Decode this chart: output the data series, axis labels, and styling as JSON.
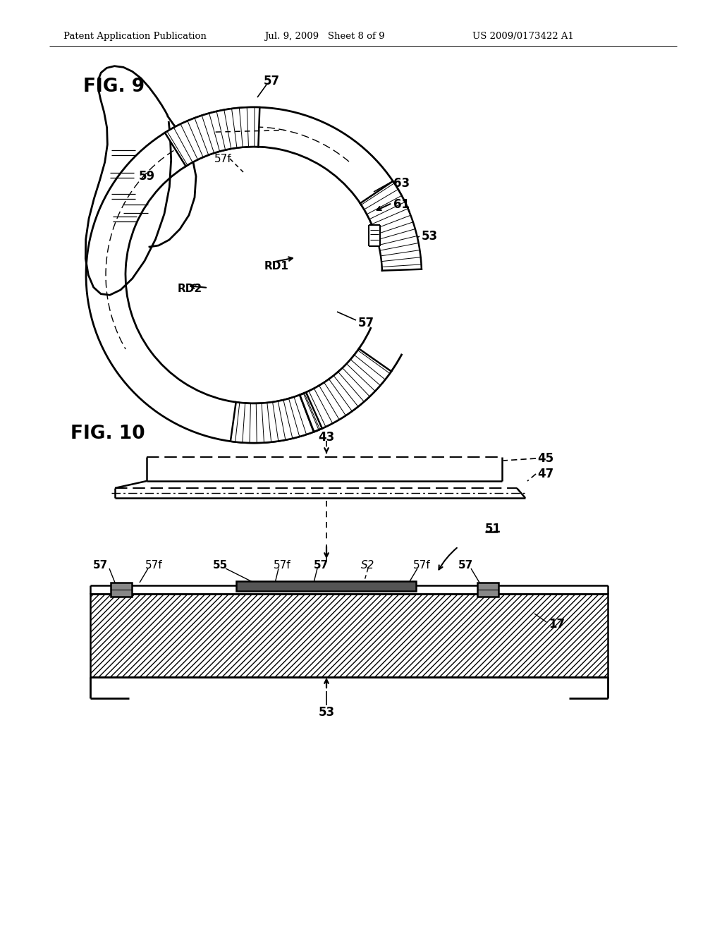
{
  "bg_color": "#ffffff",
  "header_left": "Patent Application Publication",
  "header_mid": "Jul. 9, 2009   Sheet 8 of 9",
  "header_right": "US 2009/0173422 A1",
  "fig9_label": "FIG. 9",
  "fig10_label": "FIG. 10",
  "lc": "#000000",
  "tc": "#000000"
}
